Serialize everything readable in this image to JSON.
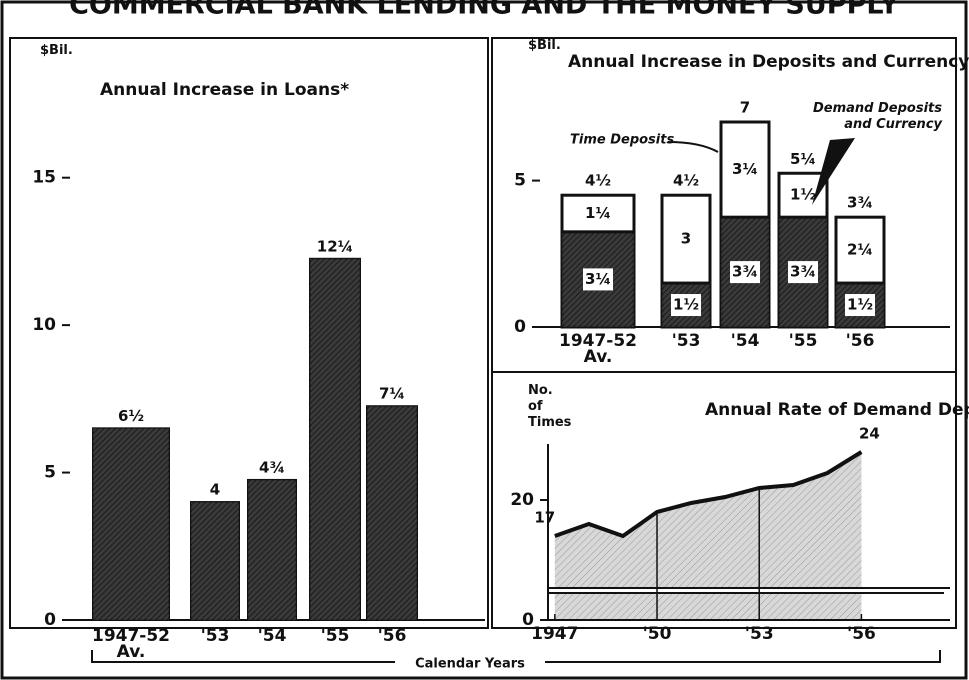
{
  "title": "COMMERCIAL BANK LENDING AND THE MONEY SUPPLY",
  "x_label": "Calendar Years",
  "chart_data": [
    {
      "type": "bar",
      "title": "Annual Increase in Loans*",
      "y_label": "$Bil.",
      "categories": [
        "1947-52 Av.",
        "'53",
        "'54",
        "'55",
        "'56"
      ],
      "values": [
        6.5,
        4,
        4.75,
        12.25,
        7.25
      ],
      "value_labels": [
        "6½",
        "4",
        "4¾",
        "12¼",
        "7¼"
      ],
      "color": "#2b2b2b",
      "ylim": [
        0,
        19.5
      ],
      "yticks": [
        0,
        5,
        10,
        15
      ]
    },
    {
      "type": "stacked_bar",
      "title": "Annual Increase in Deposits and Currency",
      "y_label": "$Bil.",
      "categories": [
        "1947-52 Av.",
        "'53",
        "'54",
        "'55",
        "'56"
      ],
      "series": [
        {
          "name": "Demand Deposits and Currency",
          "color": "#2b2b2b",
          "values": [
            3.25,
            1.5,
            3.75,
            3.75,
            1.5
          ],
          "value_labels": [
            "3¼",
            "1½",
            "3¾",
            "3¾",
            "1½"
          ]
        },
        {
          "name": "Time Deposits",
          "color": "#ffffff",
          "values": [
            1.25,
            3,
            3.25,
            1.5,
            2.25
          ],
          "value_labels": [
            "1¼",
            "3",
            "3¼",
            "1½",
            "2¼"
          ]
        }
      ],
      "total_labels": [
        "4½",
        "4½",
        "7",
        "5¼",
        "3¾"
      ],
      "ylim": [
        0,
        9.8
      ],
      "yticks": [
        0,
        5
      ]
    },
    {
      "type": "area",
      "title": "Annual Rate of Demand Deposit Turnover",
      "y_label": "No. of Times",
      "x": [
        1947,
        1948,
        1949,
        1950,
        1951,
        1952,
        1953,
        1954,
        1955,
        1956
      ],
      "values": [
        17,
        18,
        17,
        19,
        19.75,
        20.25,
        21,
        21.25,
        22.25,
        24
      ],
      "value_labels": [
        "17",
        null,
        null,
        null,
        null,
        null,
        null,
        null,
        null,
        "24"
      ],
      "color": "#d8d8d8",
      "xlim": [
        1946.8,
        1958.6
      ],
      "xticks": [
        {
          "value": 1947,
          "label": "1947"
        },
        {
          "value": 1950,
          "label": "'50"
        },
        {
          "value": 1953,
          "label": "'53"
        },
        {
          "value": 1956,
          "label": "'56"
        }
      ],
      "ylim": [
        0,
        28
      ],
      "yticks": [
        0,
        20
      ],
      "y_break": [
        2,
        14
      ]
    }
  ]
}
